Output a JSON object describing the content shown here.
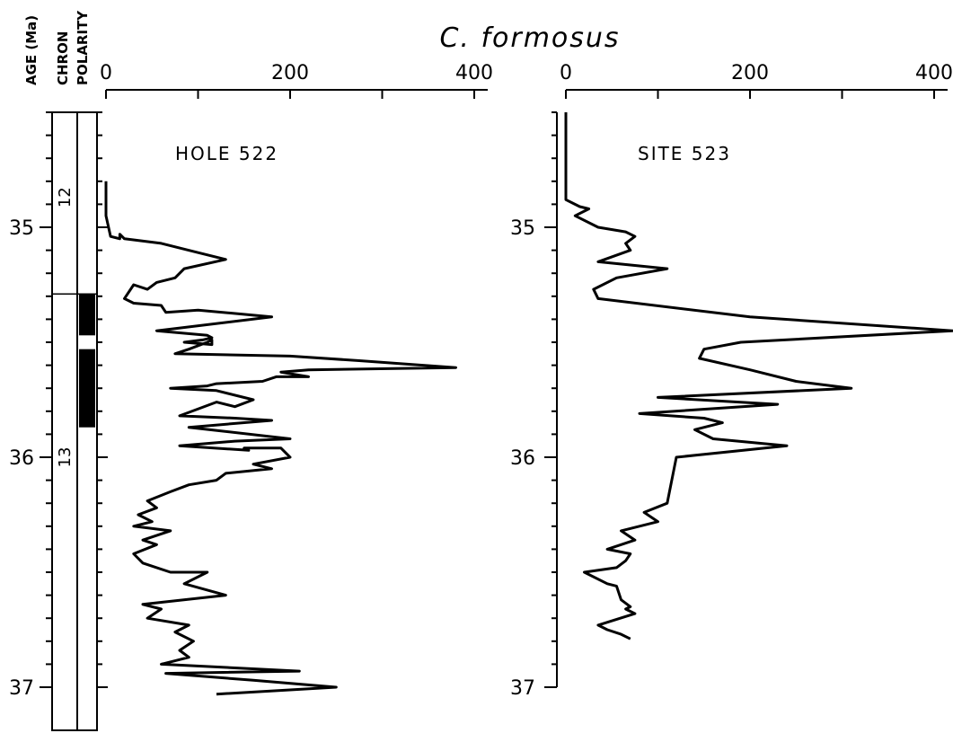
{
  "chart_data": [
    {
      "type": "line",
      "title": "C. formosus",
      "panel_label": "HOLE 522",
      "xlim": [
        0,
        400
      ],
      "xticks": [
        "0",
        "200",
        "400"
      ],
      "ylabel": "AGE (Ma)",
      "ylim": [
        34.5,
        37.05
      ],
      "yticks": [
        "35",
        "36",
        "37"
      ],
      "series": [
        {
          "points": [
            [
              0,
              34.8
            ],
            [
              0,
              34.95
            ],
            [
              5,
              35.04
            ],
            [
              15,
              35.05
            ],
            [
              15,
              35.03
            ],
            [
              20,
              35.05
            ],
            [
              60,
              35.07
            ],
            [
              100,
              35.11
            ],
            [
              130,
              35.14
            ],
            [
              85,
              35.18
            ],
            [
              75,
              35.22
            ],
            [
              55,
              35.24
            ],
            [
              45,
              35.27
            ],
            [
              30,
              35.25
            ],
            [
              20,
              35.31
            ],
            [
              30,
              35.33
            ],
            [
              60,
              35.34
            ],
            [
              65,
              35.37
            ],
            [
              100,
              35.36
            ],
            [
              180,
              35.39
            ],
            [
              55,
              35.45
            ],
            [
              110,
              35.47
            ],
            [
              115,
              35.48
            ],
            [
              105,
              35.49
            ],
            [
              85,
              35.5
            ],
            [
              115,
              35.51
            ],
            [
              115,
              35.49
            ],
            [
              110,
              35.5
            ],
            [
              90,
              35.53
            ],
            [
              75,
              35.55
            ],
            [
              200,
              35.56
            ],
            [
              275,
              35.58
            ],
            [
              380,
              35.61
            ],
            [
              220,
              35.62
            ],
            [
              190,
              35.63
            ],
            [
              220,
              35.65
            ],
            [
              185,
              35.65
            ],
            [
              170,
              35.67
            ],
            [
              120,
              35.68
            ],
            [
              110,
              35.69
            ],
            [
              70,
              35.7
            ],
            [
              120,
              35.71
            ],
            [
              160,
              35.75
            ],
            [
              140,
              35.78
            ],
            [
              120,
              35.76
            ],
            [
              80,
              35.82
            ],
            [
              140,
              35.83
            ],
            [
              180,
              35.84
            ],
            [
              90,
              35.87
            ],
            [
              200,
              35.92
            ],
            [
              140,
              35.93
            ],
            [
              80,
              35.95
            ],
            [
              155,
              35.97
            ],
            [
              150,
              35.96
            ],
            [
              190,
              35.96
            ],
            [
              200,
              36.0
            ],
            [
              160,
              36.03
            ],
            [
              180,
              36.05
            ],
            [
              130,
              36.07
            ],
            [
              120,
              36.1
            ],
            [
              90,
              36.12
            ],
            [
              70,
              36.15
            ],
            [
              45,
              36.19
            ],
            [
              55,
              36.22
            ],
            [
              35,
              36.25
            ],
            [
              50,
              36.28
            ],
            [
              30,
              36.3
            ],
            [
              70,
              36.32
            ],
            [
              40,
              36.36
            ],
            [
              55,
              36.38
            ],
            [
              30,
              36.42
            ],
            [
              40,
              36.46
            ],
            [
              70,
              36.5
            ],
            [
              110,
              36.5
            ],
            [
              85,
              36.55
            ],
            [
              130,
              36.6
            ],
            [
              40,
              36.64
            ],
            [
              60,
              36.66
            ],
            [
              45,
              36.7
            ],
            [
              90,
              36.73
            ],
            [
              75,
              36.76
            ],
            [
              95,
              36.8
            ],
            [
              80,
              36.84
            ],
            [
              90,
              36.87
            ],
            [
              60,
              36.9
            ],
            [
              210,
              36.93
            ],
            [
              65,
              36.94
            ],
            [
              160,
              36.97
            ],
            [
              250,
              37.0
            ],
            [
              120,
              37.03
            ]
          ]
        }
      ]
    },
    {
      "type": "line",
      "title": "",
      "panel_label": "SITE 523",
      "xlim": [
        0,
        400
      ],
      "xticks": [
        "0",
        "200",
        "400"
      ],
      "ylabel": "",
      "ylim": [
        34.5,
        37.05
      ],
      "yticks": [
        "35",
        "36",
        "37"
      ],
      "series": [
        {
          "points": [
            [
              0,
              34.5
            ],
            [
              0,
              34.88
            ],
            [
              15,
              34.91
            ],
            [
              25,
              34.92
            ],
            [
              10,
              34.95
            ],
            [
              35,
              35.0
            ],
            [
              65,
              35.02
            ],
            [
              75,
              35.04
            ],
            [
              65,
              35.07
            ],
            [
              70,
              35.1
            ],
            [
              35,
              35.15
            ],
            [
              110,
              35.18
            ],
            [
              55,
              35.22
            ],
            [
              30,
              35.27
            ],
            [
              35,
              35.31
            ],
            [
              200,
              35.39
            ],
            [
              420,
              35.45
            ],
            [
              190,
              35.5
            ],
            [
              150,
              35.53
            ],
            [
              145,
              35.57
            ],
            [
              200,
              35.62
            ],
            [
              250,
              35.67
            ],
            [
              310,
              35.7
            ],
            [
              100,
              35.74
            ],
            [
              230,
              35.77
            ],
            [
              80,
              35.81
            ],
            [
              150,
              35.83
            ],
            [
              170,
              35.85
            ],
            [
              140,
              35.88
            ],
            [
              160,
              35.92
            ],
            [
              240,
              35.95
            ],
            [
              120,
              36.0
            ],
            [
              110,
              36.2
            ],
            [
              85,
              36.24
            ],
            [
              100,
              36.28
            ],
            [
              80,
              36.3
            ],
            [
              60,
              36.32
            ],
            [
              75,
              36.36
            ],
            [
              45,
              36.4
            ],
            [
              70,
              36.42
            ],
            [
              65,
              36.45
            ],
            [
              55,
              36.48
            ],
            [
              20,
              36.5
            ],
            [
              45,
              36.55
            ],
            [
              55,
              36.56
            ],
            [
              60,
              36.62
            ],
            [
              70,
              36.65
            ],
            [
              65,
              36.66
            ],
            [
              75,
              36.68
            ],
            [
              35,
              36.73
            ],
            [
              45,
              36.75
            ],
            [
              60,
              36.77
            ],
            [
              70,
              36.79
            ]
          ]
        }
      ]
    }
  ],
  "magnetostratigraphy": {
    "age_label": "AGE (Ma)",
    "chron_label": "CHRON",
    "polarity_label": "POLARITY",
    "chrons": [
      {
        "label": "12",
        "from": 34.5,
        "to": 35.29
      },
      {
        "label": "13",
        "from": 35.29,
        "to": 37.05
      }
    ],
    "normal_polarity": [
      {
        "from": 35.29,
        "to": 35.47
      },
      {
        "from": 35.53,
        "to": 35.87
      }
    ]
  }
}
